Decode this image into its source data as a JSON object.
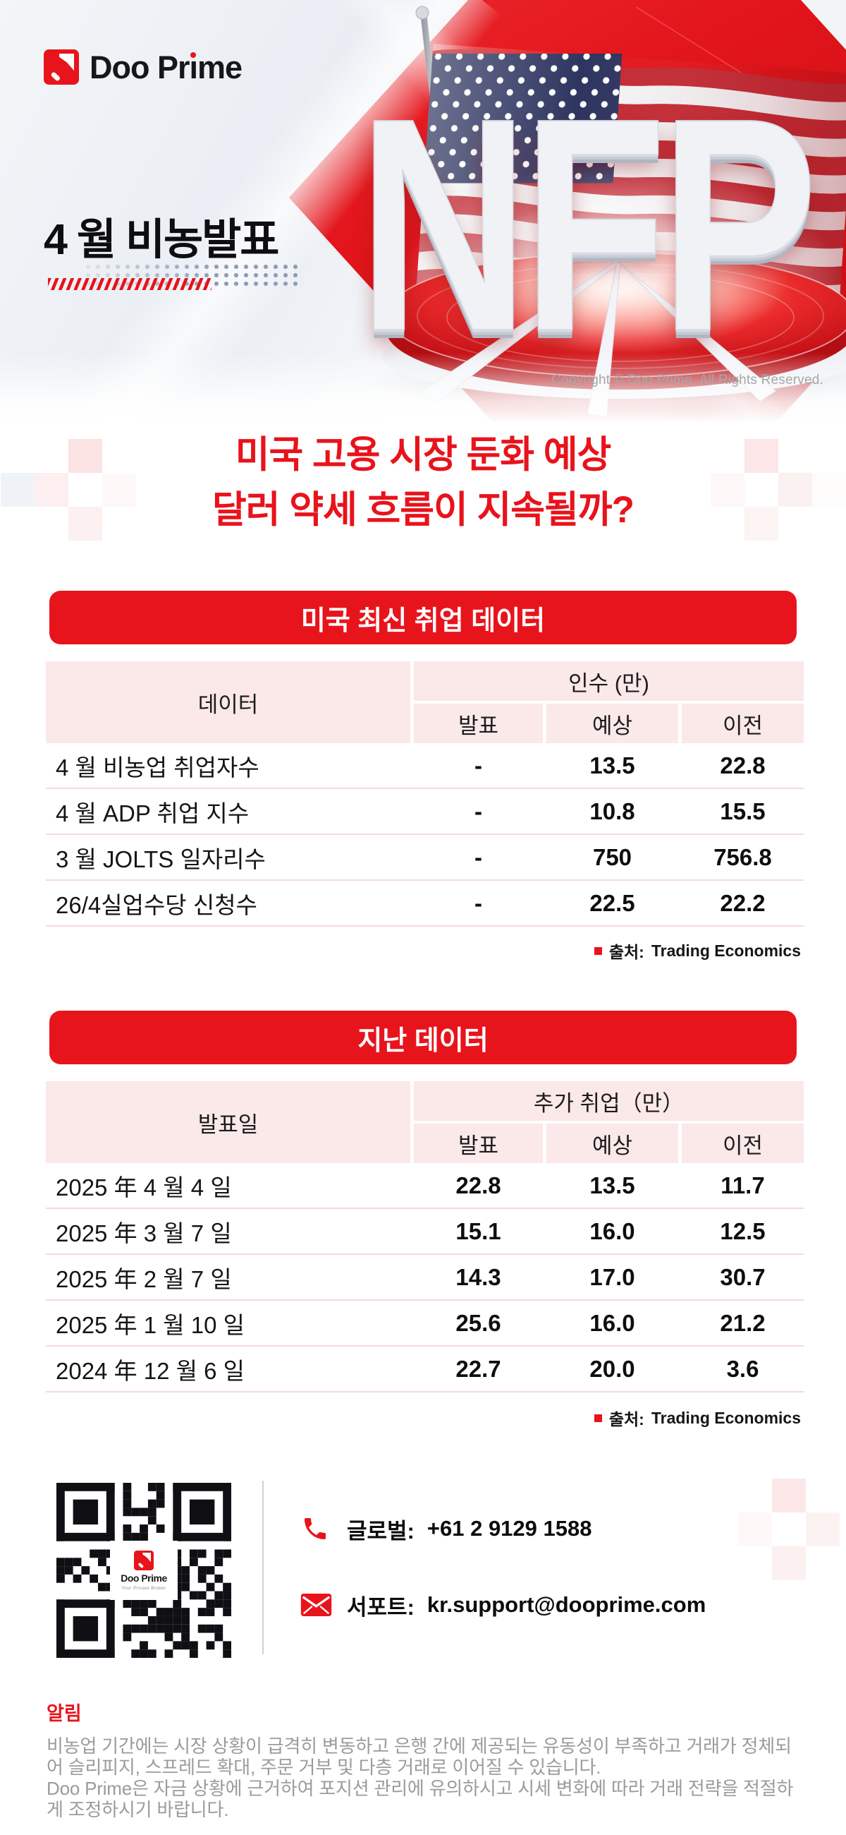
{
  "banner": {
    "logo_text": "Doo Prime",
    "wordmark": {
      "pre": "Doo Pr",
      "i_char": "ı",
      "post": "me"
    },
    "title": "4 월 비농발표",
    "nfp": "NFP",
    "copyright": "Copyright © Doo Prime. All Rights Reserved."
  },
  "headline": {
    "line1": "미국 고용 시장 둔화 예상",
    "line2": "달러 약세 흐름이 지속될까?"
  },
  "jobs_table": {
    "title": "미국 최신 취업 데이터",
    "first_col": "데이터",
    "group_col": "인수 (만)",
    "sub_cols": [
      "발표",
      "예상",
      "이전"
    ],
    "rows": [
      {
        "label": "4 월 비농업 취업자수",
        "announced": "-",
        "expected": "13.5",
        "previous": "22.8"
      },
      {
        "label": "4 월 ADP 취업 지수",
        "announced": "-",
        "expected": "10.8",
        "previous": "15.5"
      },
      {
        "label": "3 월 JOLTS 일자리수",
        "announced": "-",
        "expected": "750",
        "previous": "756.8"
      },
      {
        "label": "26/4실업수당 신청수",
        "announced": "-",
        "expected": "22.5",
        "previous": "22.2"
      }
    ],
    "source_label": "출처:",
    "source_name": "Trading Economics"
  },
  "history_table": {
    "title": "지난 데이터",
    "first_col": "발표일",
    "group_col": "추가 취업（만）",
    "sub_cols": [
      "발표",
      "예상",
      "이전"
    ],
    "rows": [
      {
        "label": "2025 年 4 월 4 일",
        "announced": "22.8",
        "expected": "13.5",
        "previous": "11.7"
      },
      {
        "label": "2025 年 3 월 7 일",
        "announced": "15.1",
        "expected": "16.0",
        "previous": "12.5"
      },
      {
        "label": "2025 年 2 월 7 일",
        "announced": "14.3",
        "expected": "17.0",
        "previous": "30.7"
      },
      {
        "label": "2025 年 1 월 10 일",
        "announced": "25.6",
        "expected": "16.0",
        "previous": "21.2"
      },
      {
        "label": "2024 年 12 월 6 일",
        "announced": "22.7",
        "expected": "20.0",
        "previous": "3.6"
      }
    ],
    "source_label": "출처:",
    "source_name": "Trading Economics"
  },
  "contact": {
    "qr_brand": "Doo Prime",
    "qr_tagline": "Your Private Broker",
    "phone_label": "글로벌:",
    "phone_number": "+61 2 9129 1588",
    "email_label": "서포트:",
    "email": "kr.support@dooprime.com"
  },
  "footer": {
    "title": "알림",
    "body1": "비농업 기간에는 시장 상황이 급격히 변동하고 은행 간에 제공되는 유동성이 부족하고 거래가 정체되어 슬리피지, 스프레드 확대, 주문 거부 및 다층 거래로 이어질 수 있습니다.",
    "body2": "Doo Prime은 자금 상황에 근거하여 포지션 관리에 유의하시고 시세 변화에 따라 거래 전략을 적절하게 조정하시기 바랍니다."
  },
  "colors": {
    "brand_red": "#e8141c",
    "table_header_pink": "#fbe8e8",
    "footer_gray": "#9b9b9b"
  }
}
